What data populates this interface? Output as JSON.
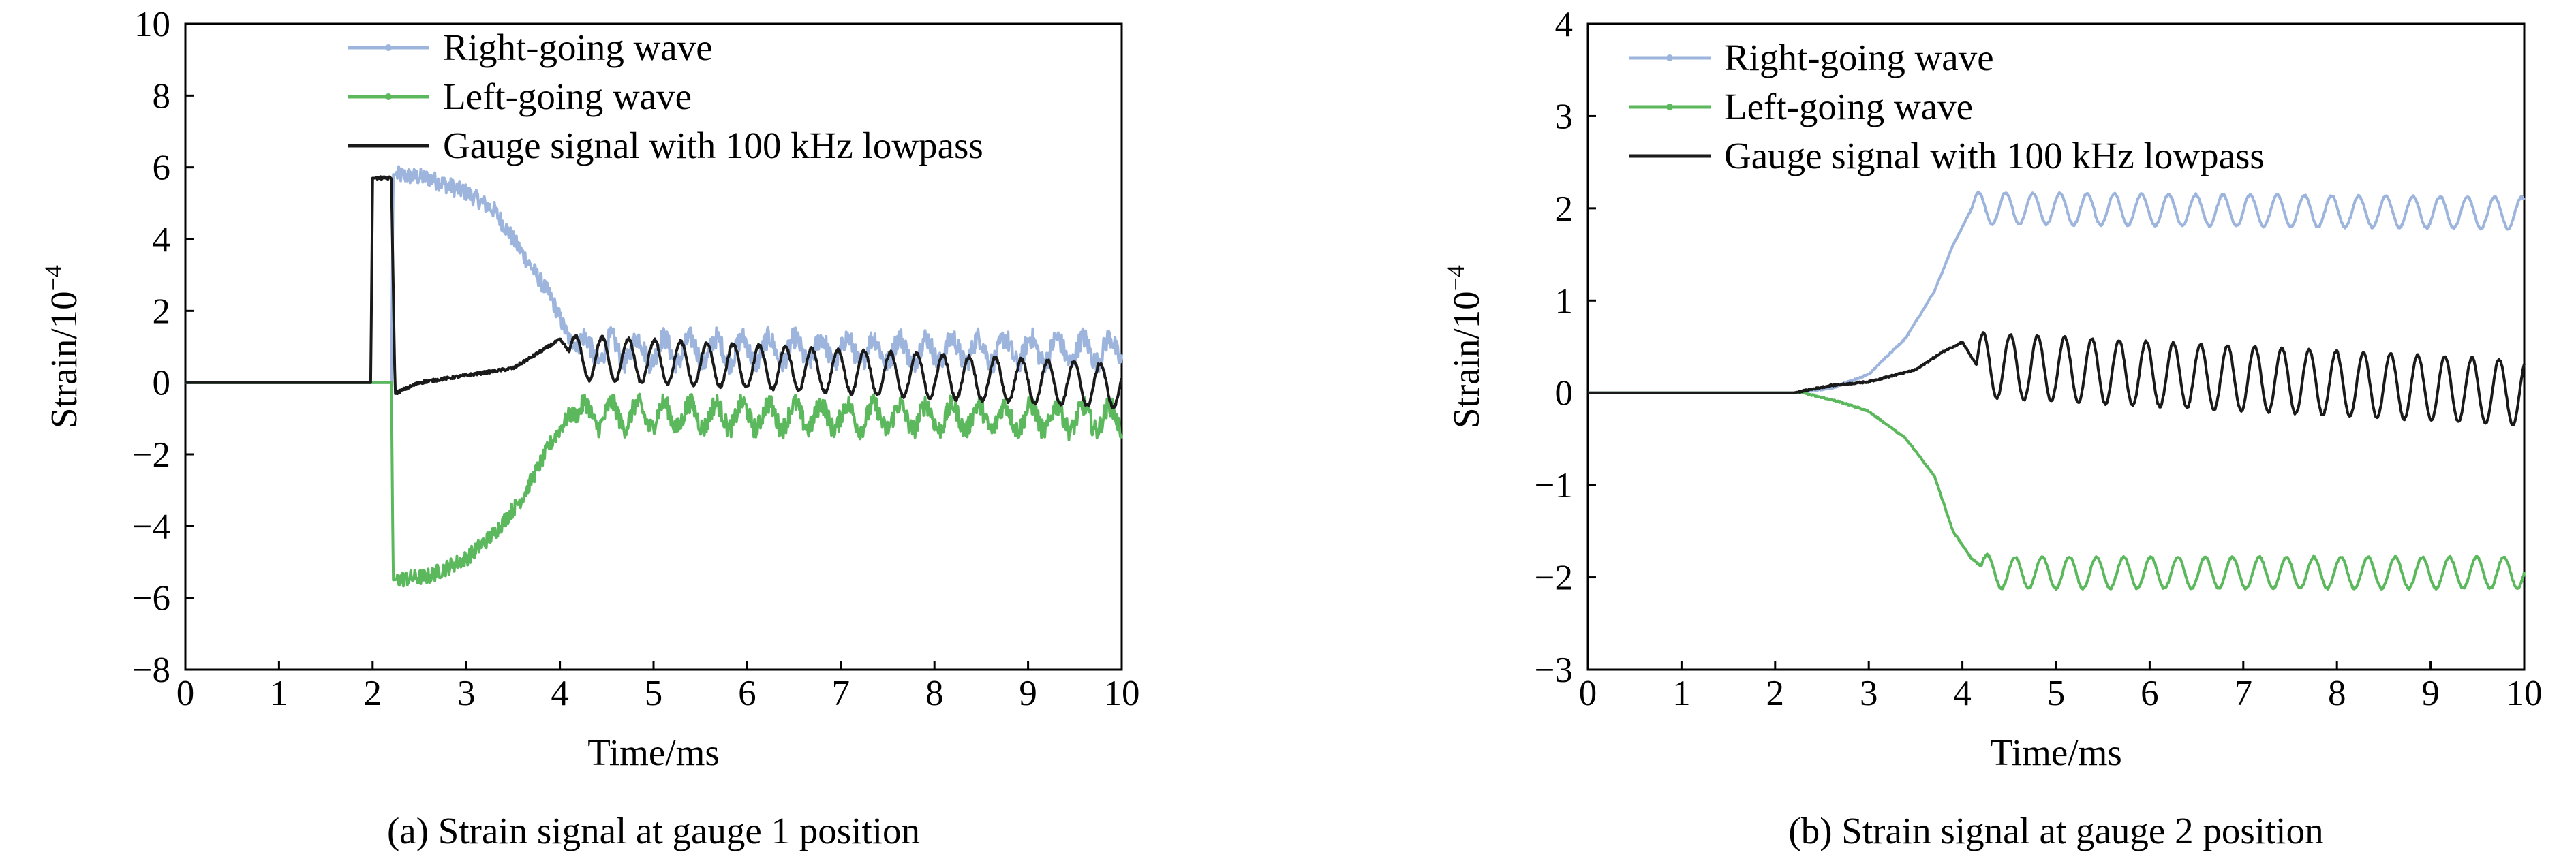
{
  "chart_data": [
    {
      "type": "line",
      "panel": "a",
      "caption": "(a) Strain signal at gauge 1 position",
      "xlabel": "Time/ms",
      "ylabel_base": "Strain/10",
      "ylabel_exp": "−4",
      "xlim": [
        0,
        10
      ],
      "ylim": [
        -8,
        10
      ],
      "x_ticks": [
        0,
        1,
        2,
        3,
        4,
        5,
        6,
        7,
        8,
        9,
        10
      ],
      "y_ticks": [
        -8,
        -6,
        -4,
        -2,
        0,
        2,
        4,
        6,
        8,
        10
      ],
      "x_tick_labels": [
        "0",
        "1",
        "2",
        "3",
        "4",
        "5",
        "6",
        "7",
        "8",
        "9",
        "10"
      ],
      "y_tick_labels": [
        "−8",
        "−6",
        "−4",
        "−2",
        "0",
        "2",
        "4",
        "6",
        "8",
        "10"
      ],
      "legend_position": "top-center",
      "series": [
        {
          "name": "Right-going wave",
          "color": "#9db5dc",
          "points": [
            [
              0,
              0
            ],
            [
              2.2,
              0
            ],
            [
              2.22,
              5.8
            ],
            [
              2.6,
              5.7
            ],
            [
              3.0,
              5.3
            ],
            [
              3.3,
              4.8
            ],
            [
              3.6,
              3.6
            ],
            [
              3.9,
              2.4
            ],
            [
              4.1,
              1.2
            ],
            [
              4.3,
              0.9
            ],
            [
              10,
              0.9
            ]
          ],
          "oscillation": {
            "start": 4.2,
            "period": 0.28,
            "amplitude": 0.35,
            "noise": 0.6
          }
        },
        {
          "name": "Left-going wave",
          "color": "#5cb85c",
          "points": [
            [
              0,
              0
            ],
            [
              2.2,
              0
            ],
            [
              2.22,
              -5.5
            ],
            [
              2.6,
              -5.4
            ],
            [
              3.0,
              -4.9
            ],
            [
              3.3,
              -4.2
            ],
            [
              3.6,
              -3.2
            ],
            [
              3.9,
              -1.7
            ],
            [
              4.1,
              -0.9
            ],
            [
              4.3,
              -0.9
            ],
            [
              10,
              -1.0
            ]
          ],
          "oscillation": {
            "start": 4.2,
            "period": 0.28,
            "amplitude": 0.35,
            "noise": 0.55
          }
        },
        {
          "name": "Gauge signal with 100 kHz lowpass",
          "color": "#1a1a1a",
          "points": [
            [
              0,
              0
            ],
            [
              1.98,
              0
            ],
            [
              2.0,
              5.7
            ],
            [
              2.2,
              5.7
            ],
            [
              2.24,
              -0.3
            ],
            [
              2.5,
              0.0
            ],
            [
              3.0,
              0.2
            ],
            [
              3.5,
              0.4
            ],
            [
              4.0,
              1.2
            ],
            [
              4.15,
              0.7
            ],
            [
              10,
              -0.1
            ]
          ],
          "oscillation": {
            "start": 4.1,
            "period": 0.28,
            "amplitude": 0.6,
            "noise": 0.1
          }
        }
      ]
    },
    {
      "type": "line",
      "panel": "b",
      "caption": "(b) Strain signal at gauge 2 position",
      "xlabel": "Time/ms",
      "ylabel_base": "Strain/10",
      "ylabel_exp": "−4",
      "xlim": [
        0,
        10
      ],
      "ylim": [
        -3,
        4
      ],
      "x_ticks": [
        0,
        1,
        2,
        3,
        4,
        5,
        6,
        7,
        8,
        9,
        10
      ],
      "y_ticks": [
        -3,
        -2,
        -1,
        0,
        1,
        2,
        3,
        4
      ],
      "x_tick_labels": [
        "0",
        "1",
        "2",
        "3",
        "4",
        "5",
        "6",
        "7",
        "8",
        "9",
        "10"
      ],
      "y_tick_labels": [
        "−3",
        "−2",
        "−1",
        "0",
        "1",
        "2",
        "3",
        "4"
      ],
      "legend_position": "top-left",
      "series": [
        {
          "name": "Right-going wave",
          "color": "#9db5dc",
          "points": [
            [
              0,
              0
            ],
            [
              2.2,
              0
            ],
            [
              2.6,
              0.05
            ],
            [
              3.0,
              0.2
            ],
            [
              3.4,
              0.6
            ],
            [
              3.7,
              1.1
            ],
            [
              3.9,
              1.6
            ],
            [
              4.1,
              2.0
            ],
            [
              10,
              1.95
            ]
          ],
          "oscillation": {
            "start": 4.1,
            "period": 0.29,
            "amplitude": 0.17,
            "noise": 0.02
          }
        },
        {
          "name": "Left-going wave",
          "color": "#5cb85c",
          "points": [
            [
              0,
              0
            ],
            [
              2.3,
              0
            ],
            [
              2.7,
              -0.1
            ],
            [
              3.0,
              -0.2
            ],
            [
              3.4,
              -0.5
            ],
            [
              3.7,
              -0.9
            ],
            [
              3.9,
              -1.5
            ],
            [
              4.1,
              -1.8
            ],
            [
              4.3,
              -1.95
            ],
            [
              10,
              -1.95
            ]
          ],
          "oscillation": {
            "start": 4.2,
            "period": 0.29,
            "amplitude": 0.17,
            "noise": 0.02
          }
        },
        {
          "name": "Gauge signal with 100 kHz lowpass",
          "color": "#1a1a1a",
          "points": [
            [
              0,
              0
            ],
            [
              2.2,
              0
            ],
            [
              2.6,
              0.08
            ],
            [
              3.0,
              0.12
            ],
            [
              3.5,
              0.25
            ],
            [
              3.8,
              0.45
            ],
            [
              4.0,
              0.55
            ],
            [
              4.15,
              0.3
            ],
            [
              10,
              0.0
            ]
          ],
          "oscillation": {
            "start": 4.15,
            "period": 0.29,
            "amplitude": 0.35,
            "noise": 0.02
          }
        }
      ]
    }
  ]
}
